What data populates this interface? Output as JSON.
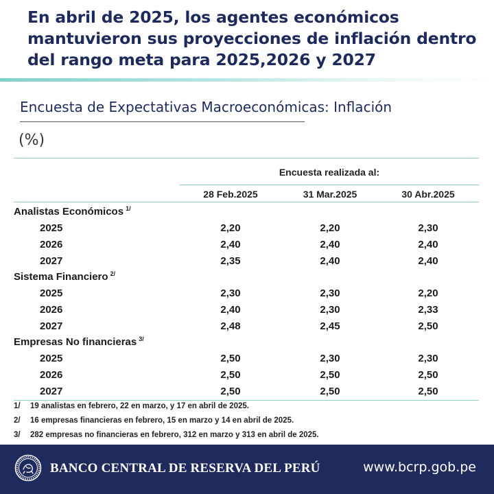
{
  "headline": [
    "En abril de 2025, los agentes económicos",
    "mantuvieron sus proyecciones de inflación dentro",
    "del rango meta para 2025,2026 y 2027"
  ],
  "subtitle": "Encuesta de Expectativas Macroeconómicas: Inflación",
  "units": "(%)",
  "table": {
    "survey_header": "Encuesta  realizada al:",
    "columns": [
      "28 Feb.2025",
      "31 Mar.2025",
      "30 Abr.2025"
    ],
    "groups": [
      {
        "label": "Analistas Económicos",
        "note": "1/",
        "rows": [
          {
            "year": "2025",
            "values": [
              "2,20",
              "2,20",
              "2,30"
            ]
          },
          {
            "year": "2026",
            "values": [
              "2,40",
              "2,40",
              "2,40"
            ]
          },
          {
            "year": "2027",
            "values": [
              "2,35",
              "2,40",
              "2,40"
            ]
          }
        ]
      },
      {
        "label": "Sistema Financiero",
        "note": "2/",
        "rows": [
          {
            "year": "2025",
            "values": [
              "2,30",
              "2,30",
              "2,20"
            ]
          },
          {
            "year": "2026",
            "values": [
              "2,40",
              "2,30",
              "2,33"
            ]
          },
          {
            "year": "2027",
            "values": [
              "2,48",
              "2,45",
              "2,50"
            ]
          }
        ]
      },
      {
        "label": "Empresas No financieras",
        "note": "3/",
        "rows": [
          {
            "year": "2025",
            "values": [
              "2,50",
              "2,30",
              "2,30"
            ]
          },
          {
            "year": "2026",
            "values": [
              "2,50",
              "2,50",
              "2,50"
            ]
          },
          {
            "year": "2027",
            "values": [
              "2,50",
              "2,50",
              "2,50"
            ]
          }
        ]
      }
    ]
  },
  "footnotes": [
    {
      "num": "1/",
      "text": "19 analistas en febrero, 22 en marzo, y 17 en abril de 2025."
    },
    {
      "num": "2/",
      "text": "16 empresas financieras en febrero, 15 en marzo y 14 en abril de 2025."
    },
    {
      "num": "3/",
      "text": "282 empresas no financieras en febrero, 312 en marzo y 313 en abril de 2025."
    }
  ],
  "footer": {
    "bank_name": "BANCO CENTRAL DE RESERVA DEL PERÚ",
    "website": "www.bcrp.gob.pe",
    "logo_icon": "bcrp-seal-icon"
  },
  "colors": {
    "navy": "#1e2b5c",
    "headline": "#1d2a5b",
    "teal_rule": "#8ccfcb"
  }
}
